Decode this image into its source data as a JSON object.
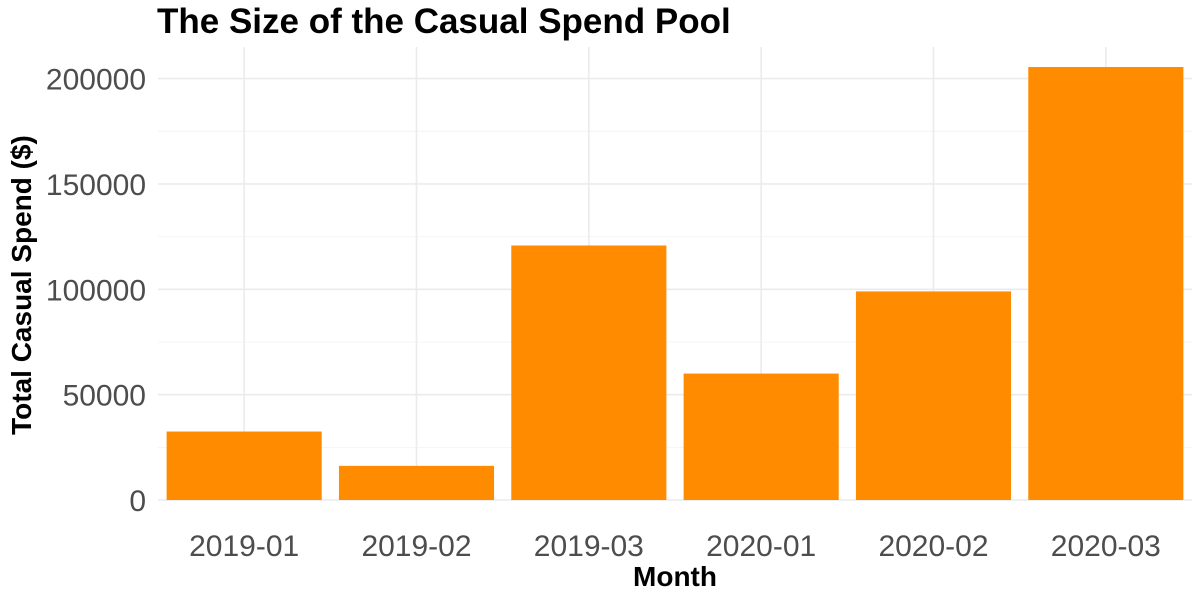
{
  "chart_data": {
    "type": "bar",
    "title": "The Size of the Casual Spend Pool",
    "xlabel": "Month",
    "ylabel": "Total Casual Spend ($)",
    "categories": [
      "2019-01",
      "2019-02",
      "2019-03",
      "2020-01",
      "2020-02",
      "2020-03"
    ],
    "values": [
      32500,
      16200,
      120800,
      60000,
      99000,
      205500
    ],
    "ylim": [
      0,
      215000
    ],
    "yticks": [
      0,
      50000,
      100000,
      150000,
      200000
    ],
    "ytick_labels": [
      "0",
      "50000",
      "100000",
      "150000",
      "200000"
    ],
    "grid": true,
    "legend": "none",
    "bar_color": "#FF8C00"
  }
}
